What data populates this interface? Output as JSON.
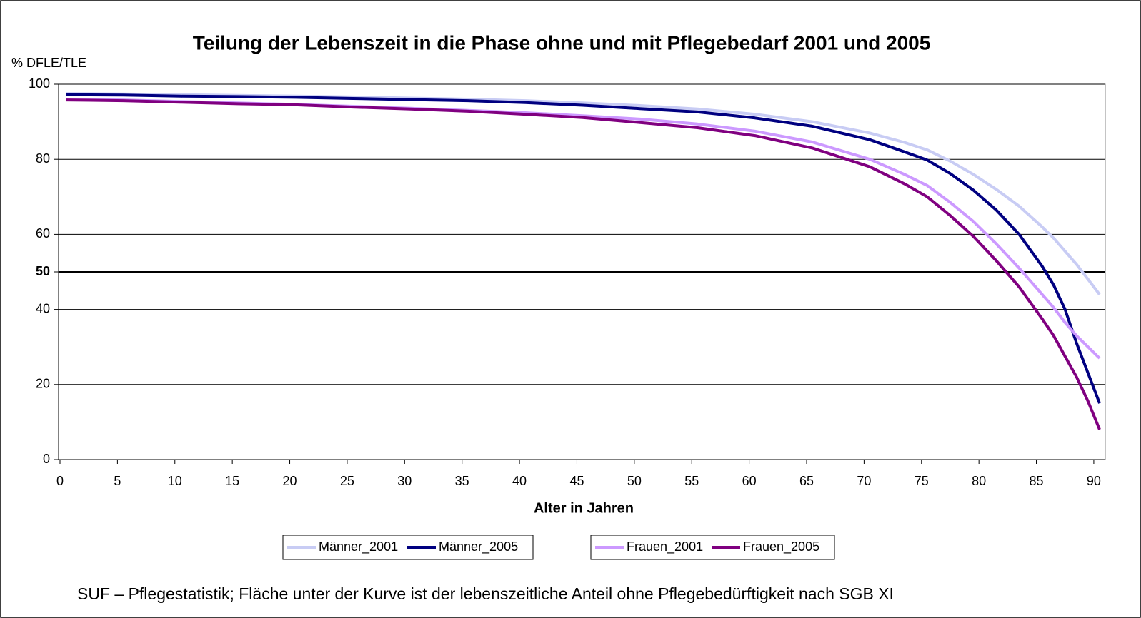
{
  "chart_data": {
    "type": "line",
    "title": "Teilung der Lebenszeit in die Phase ohne und mit Pflegebedarf 2001 und 2005",
    "y_label": "% DFLE/TLE",
    "x_label": "Alter in Jahren",
    "note": "SUF – Pflegestatistik; Fläche unter der Kurve ist der lebenszeitliche Anteil ohne Pflegebedürftigkeit nach SGB XI",
    "x": [
      0.5,
      5.5,
      10.5,
      15.5,
      20.5,
      25.5,
      30.5,
      35.5,
      40.5,
      45.5,
      50.5,
      55.5,
      60.5,
      65.5,
      70.5,
      73.5,
      75.5,
      77.5,
      79.5,
      81.5,
      83.5,
      85.5,
      86.5,
      87.5,
      88.5,
      89.5,
      90.5
    ],
    "series": [
      {
        "name": "Männer_2001",
        "color": "#c8ccf4",
        "values": [
          97.5,
          97.4,
          97.2,
          97.0,
          96.8,
          96.6,
          96.3,
          96.0,
          95.6,
          95.0,
          94.3,
          93.4,
          92.0,
          90.0,
          87.0,
          84.5,
          82.5,
          79.5,
          76.0,
          72.0,
          67.5,
          62.0,
          59.0,
          55.5,
          52.0,
          48.0,
          44.0
        ]
      },
      {
        "name": "Männer_2005",
        "color": "#000080",
        "values": [
          97.2,
          97.1,
          96.8,
          96.7,
          96.5,
          96.2,
          95.9,
          95.6,
          95.1,
          94.4,
          93.5,
          92.6,
          91.0,
          88.8,
          85.2,
          82.0,
          79.8,
          76.2,
          71.8,
          66.5,
          60.0,
          51.5,
          46.5,
          40.0,
          31.0,
          23.0,
          15.0
        ]
      },
      {
        "name": "Frauen_2001",
        "color": "#cc99ff",
        "values": [
          96.0,
          95.8,
          95.4,
          95.0,
          94.6,
          94.1,
          93.6,
          93.0,
          92.4,
          91.6,
          90.7,
          89.4,
          87.5,
          84.6,
          80.0,
          76.0,
          73.0,
          68.5,
          63.5,
          57.5,
          51.0,
          44.0,
          40.5,
          36.5,
          33.0,
          30.0,
          27.0
        ]
      },
      {
        "name": "Frauen_2005",
        "color": "#800080",
        "values": [
          95.8,
          95.6,
          95.2,
          94.8,
          94.5,
          93.9,
          93.4,
          92.8,
          92.0,
          91.1,
          89.8,
          88.4,
          86.3,
          83.0,
          78.0,
          73.5,
          70.0,
          65.0,
          59.5,
          53.0,
          46.0,
          37.5,
          33.0,
          27.5,
          22.0,
          15.5,
          8.0
        ]
      }
    ],
    "xlim": [
      0,
      91
    ],
    "xticks": [
      0,
      5,
      10,
      15,
      20,
      25,
      30,
      35,
      40,
      45,
      50,
      55,
      60,
      65,
      70,
      75,
      80,
      85,
      90
    ],
    "ylim": [
      0,
      100
    ],
    "yticks": [
      0,
      20,
      40,
      50,
      60,
      80,
      100
    ],
    "reference_line": 50,
    "grid": true
  }
}
